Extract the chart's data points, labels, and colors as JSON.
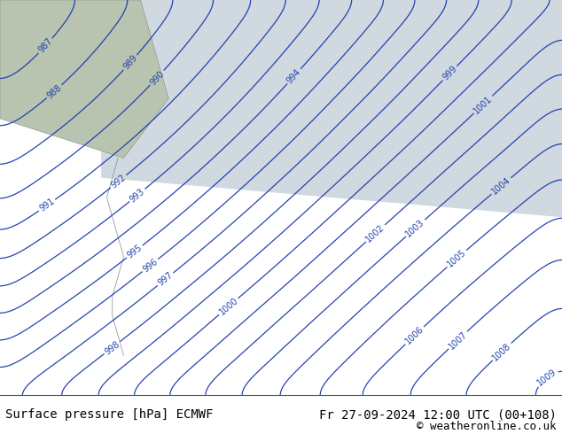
{
  "title_left": "Surface pressure [hPa] ECMWF",
  "title_right": "Fr 27-09-2024 12:00 UTC (00+108)",
  "copyright": "© weatheronline.co.uk",
  "bg_color": "#b5d98f",
  "land_color": "#c8dba8",
  "sea_color": "#d0d8e0",
  "contour_color": "#1a3aad",
  "label_color": "#1a3aad",
  "footer_bg": "#e8e8e8",
  "footer_text_color": "#000000",
  "pressure_min": 985,
  "pressure_max": 1009,
  "pressure_step": 1,
  "figsize": [
    6.34,
    4.9
  ],
  "dpi": 100
}
